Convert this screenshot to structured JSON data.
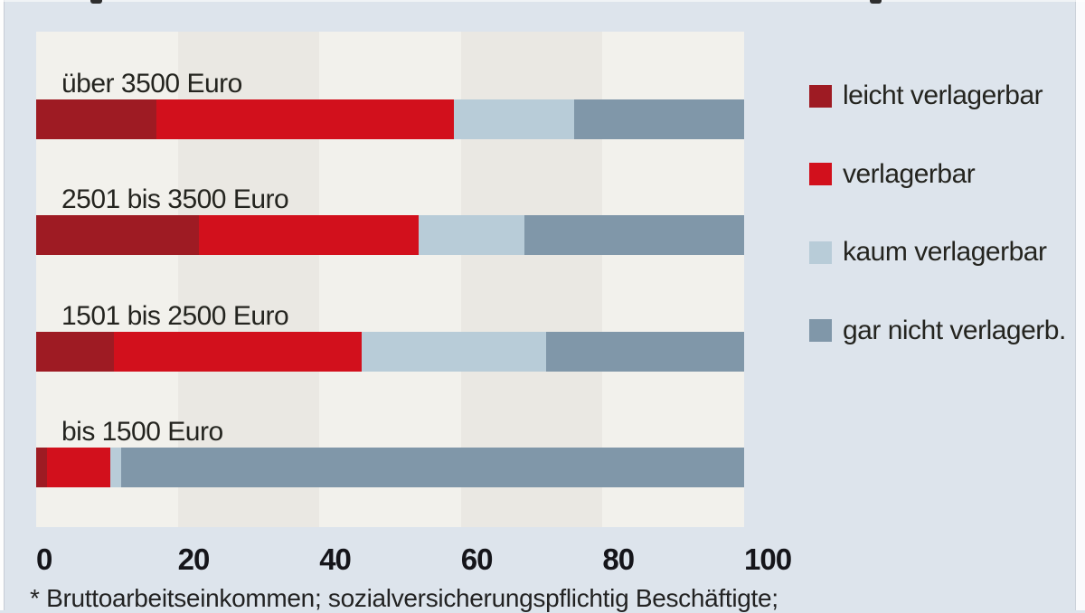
{
  "chart_data": {
    "type": "bar",
    "orientation": "horizontal",
    "stacked": true,
    "unit": "percent",
    "categories": [
      "über 3500 Euro",
      "2501 bis 3500 Euro",
      "1501 bis 2500 Euro",
      "bis 1500 Euro"
    ],
    "series": [
      {
        "name": "leicht verlagerbar",
        "color": "#9e1b23",
        "values": [
          17,
          23,
          11,
          1.5
        ]
      },
      {
        "name": "verlagerbar",
        "color": "#d2101c",
        "values": [
          42,
          31,
          35,
          9
        ]
      },
      {
        "name": "kaum verlagerbar",
        "color": "#b8ccd8",
        "values": [
          17,
          15,
          26,
          1.5
        ]
      },
      {
        "name": "gar nicht verlagerb.",
        "color": "#8097a9",
        "values": [
          24,
          31,
          28,
          88
        ]
      }
    ],
    "x_ticks": [
      "0",
      "20",
      "40",
      "60",
      "80",
      "100"
    ],
    "xlim": [
      0,
      100
    ],
    "legend_position": "right",
    "grid_bands": true
  },
  "footnote": "* Bruttoarbeitseinkommen; sozialversicherungspflichtig Beschäftigte;",
  "colors": {
    "bg": "#dde4ec",
    "band_light": "#f2f1ec",
    "band_dark": "#eae8e3",
    "leicht_verlagerbar": "#9e1b23",
    "verlagerbar": "#d2101c",
    "kaum_verlagerbar": "#b8ccd8",
    "gar_nicht_verlagerbar": "#8097a9",
    "text": "#24241f",
    "axis_text": "#15151a"
  }
}
